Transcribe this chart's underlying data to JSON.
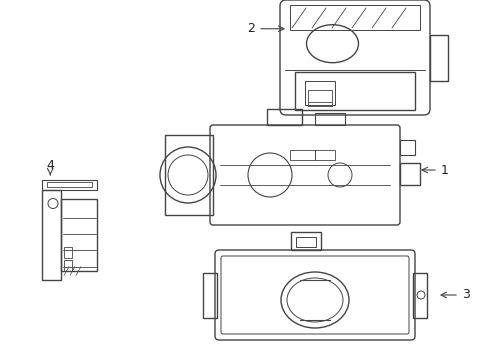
{
  "title": "",
  "background_color": "#ffffff",
  "line_color": "#444444",
  "label_color": "#222222",
  "line_width": 1.0,
  "components": {
    "part1_label": "1",
    "part2_label": "2",
    "part3_label": "3",
    "part4_label": "4"
  },
  "figsize": [
    4.9,
    3.6
  ],
  "dpi": 100
}
